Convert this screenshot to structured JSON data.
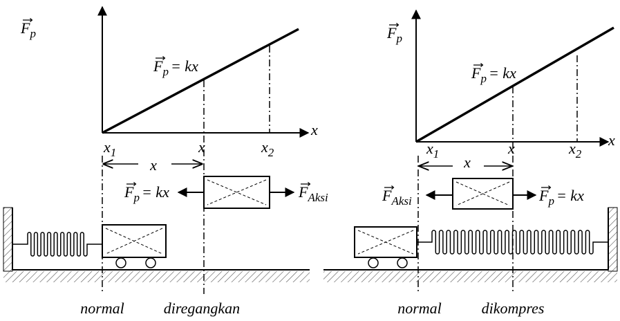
{
  "left": {
    "y_axis": {
      "main": "F",
      "sub": "p"
    },
    "x_axis": "x",
    "line_label": {
      "main": "F",
      "sub": "p",
      "tail": "= kx"
    },
    "ticks": [
      {
        "main": "x",
        "sub": "1"
      },
      {
        "main": "x"
      },
      {
        "main": "x",
        "sub": "2"
      }
    ],
    "displacement": "x",
    "force_left": {
      "main": "F",
      "sub": "p",
      "tail": "= kx"
    },
    "force_right": {
      "main": "F",
      "sub": "Aksi"
    },
    "captions": [
      "normal",
      "diregangkan"
    ]
  },
  "right": {
    "y_axis": {
      "main": "F",
      "sub": "p"
    },
    "x_axis": "x",
    "line_label": {
      "main": "F",
      "sub": "p",
      "tail": "= kx"
    },
    "ticks": [
      {
        "main": "x",
        "sub": "1"
      },
      {
        "main": "x"
      },
      {
        "main": "x",
        "sub": "2"
      }
    ],
    "displacement": "x",
    "force_left": {
      "main": "F",
      "sub": "Aksi"
    },
    "force_right": {
      "main": "F",
      "sub": "p",
      "tail": "= kx"
    },
    "captions": [
      "normal",
      "dikompres"
    ]
  }
}
